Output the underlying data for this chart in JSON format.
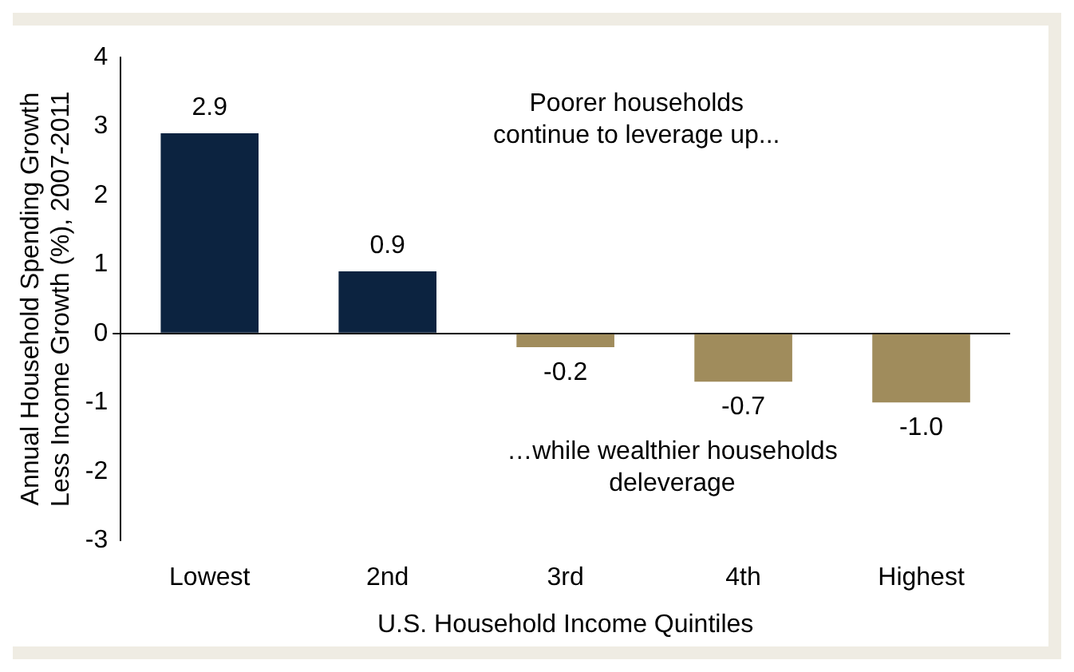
{
  "chart_data": {
    "type": "bar",
    "xlabel": "U.S. Household Income Quintiles",
    "ylabel": "Annual Household Spending Growth\nLess Income Growth (%), 2007-2011",
    "categories": [
      "Lowest",
      "2nd",
      "3rd",
      "4th",
      "Highest"
    ],
    "values": [
      2.9,
      0.9,
      -0.2,
      -0.7,
      -1.0
    ],
    "colors": [
      "#0c2340",
      "#0c2340",
      "#a08c5c",
      "#a08c5c",
      "#a08c5c"
    ],
    "value_labels": [
      "2.9",
      "0.9",
      "-0.2",
      "-0.7",
      "-1.0"
    ],
    "ylim": [
      -3,
      4
    ],
    "yticks": [
      -3,
      -2,
      -1,
      0,
      1,
      2,
      3,
      4
    ],
    "annotations": [
      "Poorer households\ncontinue to leverage up...",
      "…while wealthier households\ndeleverage"
    ]
  }
}
